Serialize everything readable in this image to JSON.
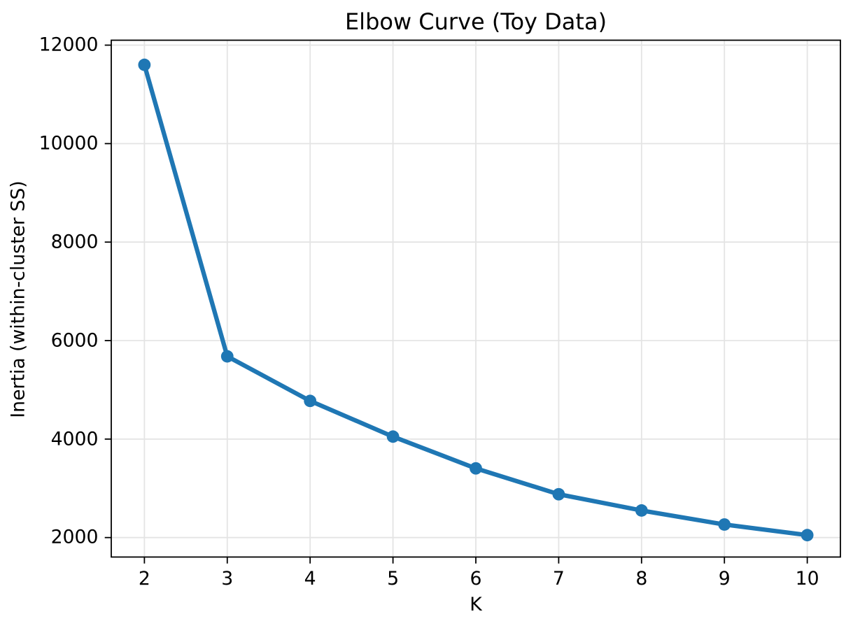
{
  "figure": {
    "background": "#ffffff"
  },
  "chart_data": {
    "type": "line",
    "title": "Elbow Curve (Toy Data)",
    "xlabel": "K",
    "ylabel": "Inertia (within-cluster SS)",
    "x": [
      2,
      3,
      4,
      5,
      6,
      7,
      8,
      9,
      10
    ],
    "series": [
      {
        "name": "inertia",
        "values": [
          11600,
          5680,
          4775,
          4050,
          3405,
          2880,
          2550,
          2265,
          2050
        ],
        "color": "#1f77b4",
        "marker": "o",
        "line_style": "solid"
      }
    ],
    "xticks": [
      2,
      3,
      4,
      5,
      6,
      7,
      8,
      9,
      10
    ],
    "yticks": [
      2000,
      4000,
      6000,
      8000,
      10000,
      12000
    ],
    "xlim": [
      1.6,
      10.4
    ],
    "ylim": [
      1605,
      12100
    ],
    "grid": true,
    "legend_position": "none"
  },
  "style": {
    "line_color": "#1f77b4",
    "grid_color": "#e4e4e4",
    "spine_color": "#000000",
    "tick_color": "#000000",
    "text_color": "#000000"
  }
}
